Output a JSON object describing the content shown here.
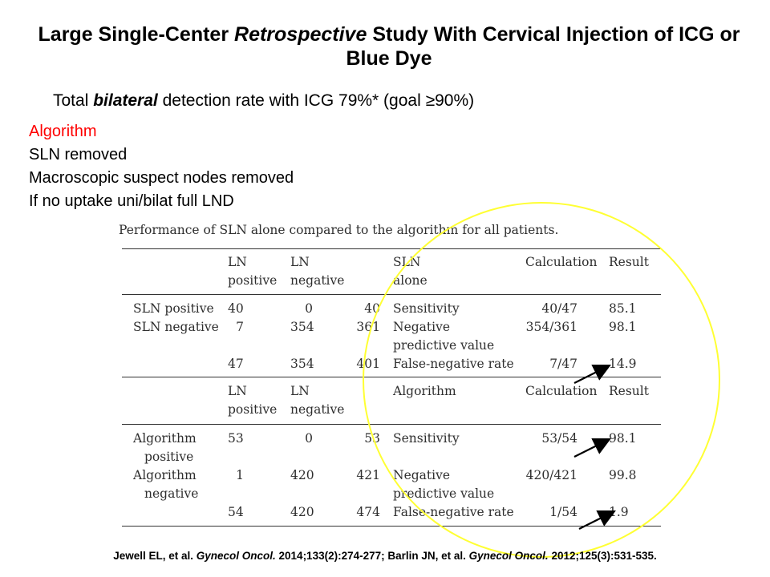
{
  "title": {
    "part1": "Large Single-Center ",
    "italic": "Retrospective",
    "part2": " Study With Cervical Injection of ICG or Blue Dye"
  },
  "subtitle": {
    "part1": "Total ",
    "bold_italic": "bilateral",
    "part2": " detection rate with ICG 79%* (goal ≥90%)"
  },
  "algorithm_list": {
    "heading": "Algorithm",
    "items": [
      "SLN removed",
      "Macroscopic suspect nodes removed",
      "If no uptake uni/bilat full LND"
    ]
  },
  "table": {
    "caption": "Performance of SLN alone compared to the algorithm for all patients.",
    "section1": {
      "headers": [
        "LN positive",
        "LN negative",
        "",
        "SLN alone",
        "Calculation",
        "Result"
      ],
      "header_lines": {
        "ln_pos_1": "LN",
        "ln_pos_2": "positive",
        "ln_neg_1": "LN",
        "ln_neg_2": "negative",
        "sln_1": "SLN",
        "sln_2": "alone",
        "calc": "Calculation",
        "result": "Result"
      },
      "rows": [
        {
          "label": "SLN positive",
          "pos": "40",
          "neg": "0",
          "total": "40",
          "metric": "Sensitivity",
          "calc": "40/47",
          "result": "85.1"
        },
        {
          "label": "SLN negative",
          "pos": "7",
          "neg": "354",
          "total": "361",
          "metric": "Negative",
          "metric2": "predictive value",
          "calc": "354/361",
          "result": "98.1"
        },
        {
          "label": "",
          "pos": "47",
          "neg": "354",
          "total": "401",
          "metric": "False-negative rate",
          "calc": "7/47",
          "result": "14.9"
        }
      ]
    },
    "section2": {
      "header_lines": {
        "ln_pos_1": "LN",
        "ln_pos_2": "positive",
        "ln_neg_1": "LN",
        "ln_neg_2": "negative",
        "algo": "Algorithm",
        "calc": "Calculation",
        "result": "Result"
      },
      "rows": [
        {
          "label": "Algorithm",
          "label2": "positive",
          "pos": "53",
          "neg": "0",
          "total": "53",
          "metric": "Sensitivity",
          "calc": "53/54",
          "result": "98.1"
        },
        {
          "label": "Algorithm",
          "label2": "negative",
          "pos": "1",
          "neg": "420",
          "total": "421",
          "metric": "Negative",
          "metric2": "predictive value",
          "calc": "420/421",
          "result": "99.8"
        },
        {
          "label": "",
          "pos": "54",
          "neg": "420",
          "total": "474",
          "metric": "False-negative rate",
          "calc": "1/54",
          "result": "1.9"
        }
      ]
    }
  },
  "citation": {
    "a1": "Jewell EL, et al. ",
    "j1": "Gynecol Oncol.",
    "b1": " 2014;133(2):274-277; Barlin JN, et al. ",
    "j2": "Gynecol Oncol.",
    "b2": " 2012;125(3):531-535."
  },
  "colors": {
    "highlight_circle": "#ffff33",
    "algorithm_heading": "#ff0000"
  }
}
